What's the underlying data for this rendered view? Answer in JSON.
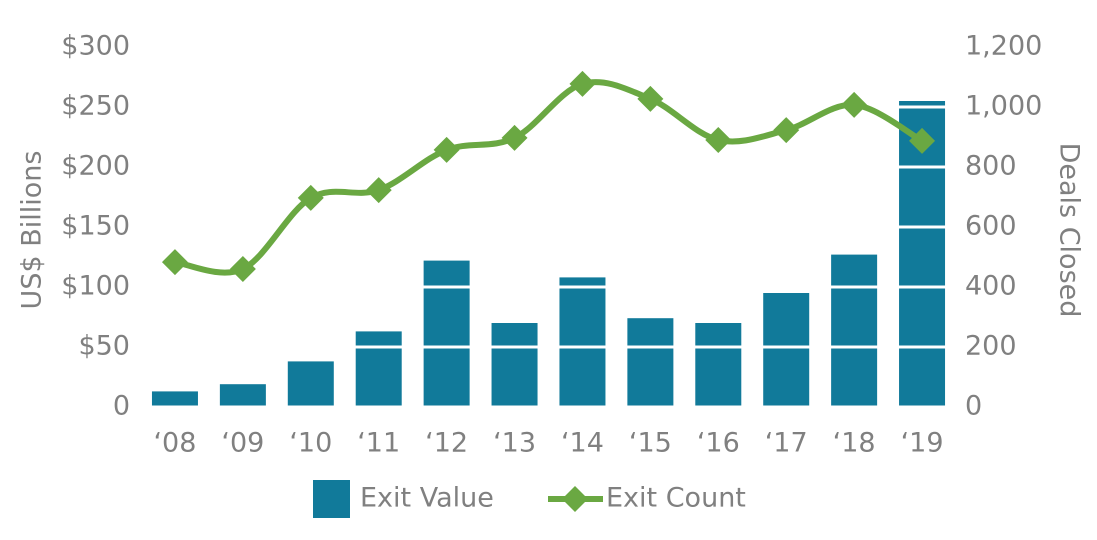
{
  "chart_data": {
    "type": "bar",
    "categories": [
      "‘08",
      "‘09",
      "‘10",
      "‘11",
      "‘12",
      "‘13",
      "‘14",
      "‘15",
      "‘16",
      "‘17",
      "‘18",
      "‘19"
    ],
    "series": [
      {
        "name": "Exit Value",
        "type": "bar",
        "color": "#117a9a",
        "values": [
          13,
          19,
          38,
          63,
          122,
          70,
          108,
          74,
          70,
          95,
          127,
          255
        ]
      },
      {
        "name": "Exit Count",
        "type": "line",
        "axis": "y2",
        "color": "#6aa842",
        "values": [
          483,
          460,
          697,
          723,
          857,
          897,
          1077,
          1027,
          890,
          923,
          1007,
          887
        ]
      }
    ],
    "ylabel": "US$ Billions",
    "y2label": "Deals Closed",
    "ylim": [
      0,
      300
    ],
    "yticks": [
      0,
      {
        "value": 50,
        "label": "$50"
      },
      {
        "value": 100,
        "label": "$100"
      },
      {
        "value": 150,
        "label": "$150"
      },
      {
        "value": 200,
        "label": "$200"
      },
      {
        "value": 250,
        "label": "$250"
      },
      {
        "value": 300,
        "label": "$300"
      }
    ],
    "y2lim": [
      0,
      1200
    ],
    "y2ticks": [
      0,
      200,
      400,
      600,
      800,
      {
        "value": 1000,
        "label": "1,000"
      },
      {
        "value": 1200,
        "label": "1,200"
      }
    ],
    "grid": true,
    "legend": "bottom"
  }
}
